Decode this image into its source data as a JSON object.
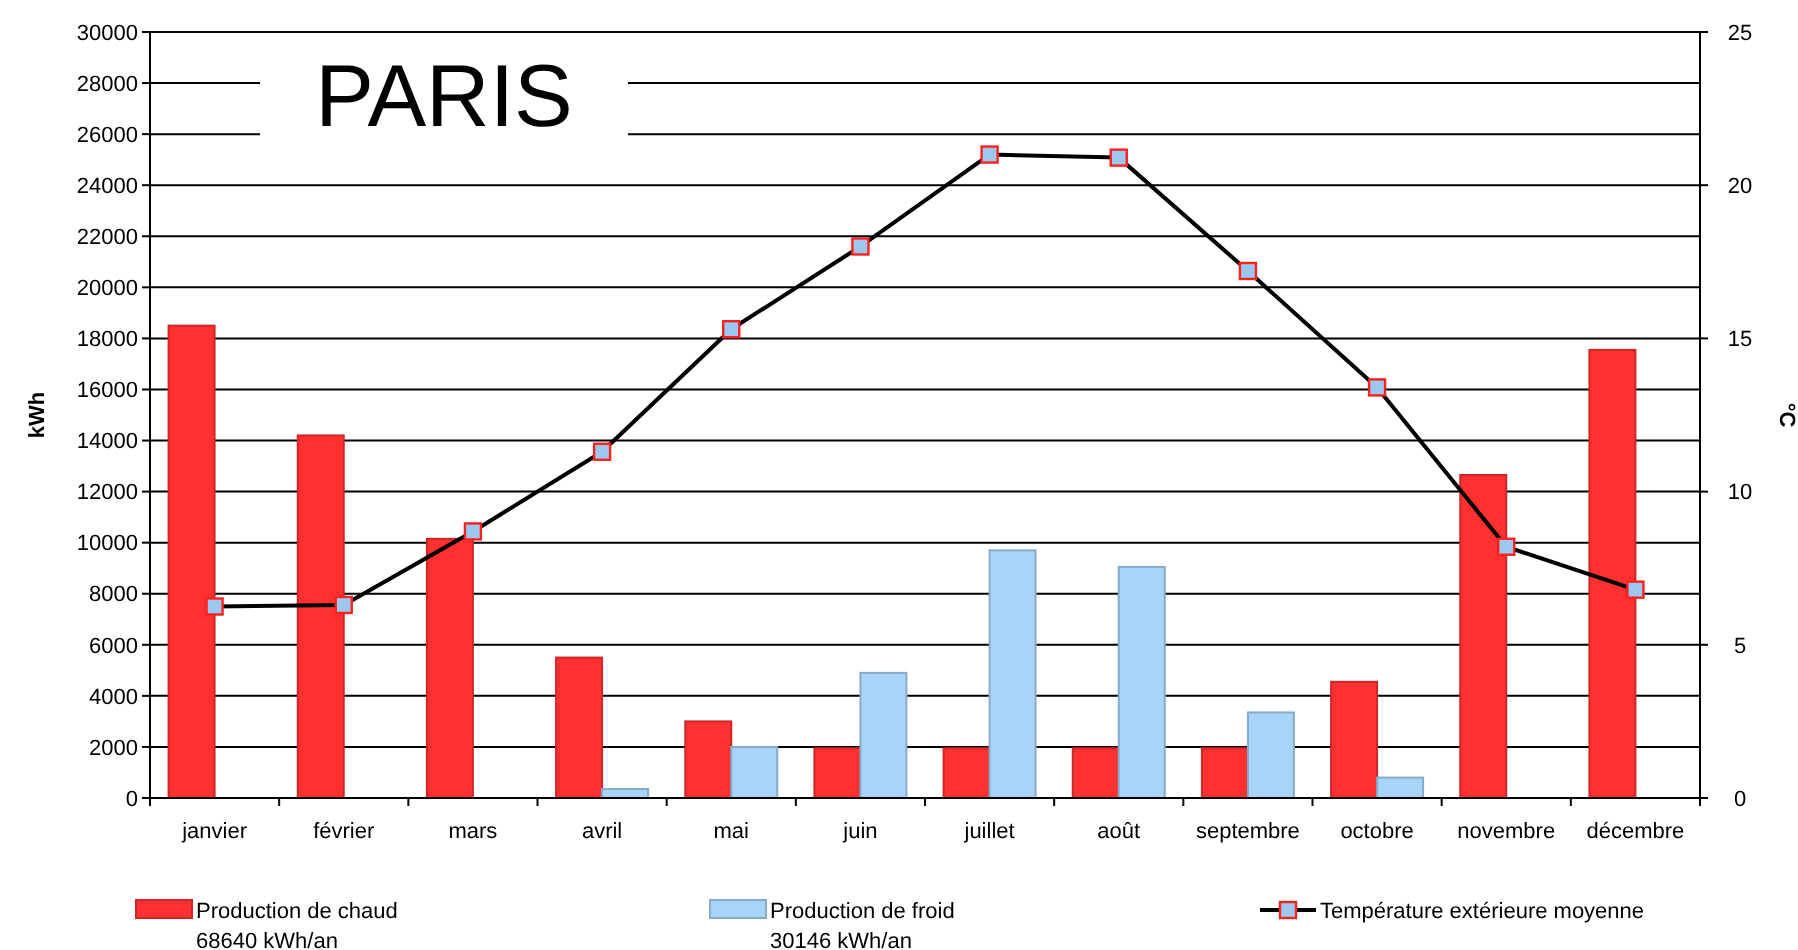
{
  "chart_data": {
    "type": "bar",
    "title": "PARIS",
    "ylabel": "kWh",
    "y2label": "°C",
    "categories": [
      "janvier",
      "février",
      "mars",
      "avril",
      "mai",
      "juin",
      "juillet",
      "août",
      "septembre",
      "octobre",
      "novembre",
      "décembre"
    ],
    "series": [
      {
        "name": "Production de chaud\n68640 kWh/an",
        "color": "#ff3030",
        "values": [
          18500,
          14200,
          10150,
          5500,
          3000,
          1950,
          1950,
          1950,
          1950,
          4550,
          12650,
          17550
        ]
      },
      {
        "name": "Production de froid\n30146 kWh/an",
        "color": "#a8d4fa",
        "values": [
          0,
          0,
          0,
          350,
          2000,
          4900,
          9700,
          9050,
          3350,
          800,
          0,
          0
        ]
      },
      {
        "name": "Température extérieure moyenne",
        "type": "line",
        "axis": "y2",
        "color": "#000000",
        "values": [
          6.25,
          6.3,
          8.7,
          11.3,
          15.3,
          18.0,
          21.0,
          20.9,
          17.2,
          13.4,
          8.2,
          6.8
        ]
      }
    ],
    "ylim": [
      0,
      30000
    ],
    "yticks": [
      0,
      2000,
      4000,
      6000,
      8000,
      10000,
      12000,
      14000,
      16000,
      18000,
      20000,
      22000,
      24000,
      26000,
      28000,
      30000
    ],
    "y2lim": [
      0,
      25
    ],
    "y2ticks": [
      0,
      5,
      10,
      15,
      20,
      25
    ],
    "grid": "y",
    "legend": "bottom",
    "marker": "square",
    "line_style": "solid"
  }
}
